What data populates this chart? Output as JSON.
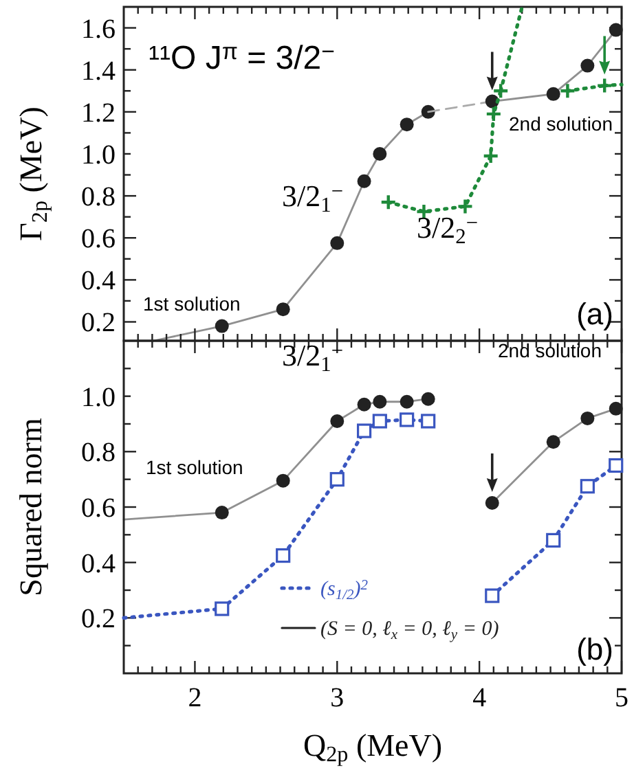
{
  "chart_data": [
    {
      "type": "line",
      "title": "¹¹O  J$^{π}$ = 3/2$^{−}$",
      "ylabel": "Γ$_{2p}$ (MeV)",
      "xlim": [
        1.5,
        5
      ],
      "ylim": [
        0.11,
        1.7
      ],
      "xticks": [
        2,
        3,
        4,
        5,
        {
          "value": 1.6,
          "label": null
        },
        {
          "value": 1.7,
          "label": null
        },
        {
          "value": 1.8,
          "label": null
        },
        {
          "value": 1.9,
          "label": null
        },
        {
          "value": 2.1,
          "label": null
        },
        {
          "value": 2.2,
          "label": null
        },
        {
          "value": 2.3,
          "label": null
        },
        {
          "value": 2.4,
          "label": null
        },
        {
          "value": 2.5,
          "label": null
        },
        {
          "value": 2.6,
          "label": null
        },
        {
          "value": 2.7,
          "label": null
        },
        {
          "value": 2.8,
          "label": null
        },
        {
          "value": 2.9,
          "label": null
        },
        {
          "value": 3.1,
          "label": null
        },
        {
          "value": 3.2,
          "label": null
        },
        {
          "value": 3.3,
          "label": null
        },
        {
          "value": 3.4,
          "label": null
        },
        {
          "value": 3.5,
          "label": null
        },
        {
          "value": 3.6,
          "label": null
        },
        {
          "value": 3.7,
          "label": null
        },
        {
          "value": 3.8,
          "label": null
        },
        {
          "value": 3.9,
          "label": null
        },
        {
          "value": 4.1,
          "label": null
        },
        {
          "value": 4.2,
          "label": null
        },
        {
          "value": 4.3,
          "label": null
        },
        {
          "value": 4.4,
          "label": null
        },
        {
          "value": 4.5,
          "label": null
        },
        {
          "value": 4.6,
          "label": null
        },
        {
          "value": 4.7,
          "label": null
        },
        {
          "value": 4.8,
          "label": null
        },
        {
          "value": 4.9,
          "label": null
        }
      ],
      "yticks": [
        0.2,
        0.4,
        0.6,
        0.8,
        {
          "value": 1,
          "label": "1.0"
        },
        1.2,
        1.4,
        1.6,
        {
          "value": 0.3,
          "label": null
        },
        {
          "value": 0.5,
          "label": null
        },
        {
          "value": 0.7,
          "label": null
        },
        {
          "value": 0.9,
          "label": null
        },
        {
          "value": 1.1,
          "label": null
        },
        {
          "value": 1.3,
          "label": null
        },
        {
          "value": 1.5,
          "label": null
        }
      ],
      "tick_labels": "y",
      "grid": false,
      "legend": false,
      "series": [
        {
          "color": "#222222",
          "line_style": "solid",
          "x": [
            1.71,
            2.19
          ],
          "values": [
            0.11,
            0.18
          ]
        },
        {
          "color": "#222222",
          "marker": "circle",
          "line_style": "solid",
          "x": [
            2.19,
            2.62,
            3.0,
            3.19,
            3.3,
            3.49,
            3.64
          ],
          "values": [
            0.18,
            0.26,
            0.575,
            0.87,
            1.0,
            1.14,
            1.2
          ]
        },
        {
          "color": "#aaaaaa",
          "line_style": "dashed",
          "x": [
            3.64,
            4.09
          ],
          "values": [
            1.2,
            1.25
          ]
        },
        {
          "color": "#222222",
          "marker": "circle",
          "line_style": "solid",
          "x": [
            4.09,
            4.52,
            4.76,
            4.96
          ],
          "values": [
            1.25,
            1.285,
            1.42,
            1.59
          ]
        },
        {
          "color": "#1e8a3a",
          "marker": "cross",
          "line_style": "dotted",
          "x": [
            3.36,
            3.61,
            3.9,
            4.08,
            4.1,
            4.15
          ],
          "values": [
            0.77,
            0.725,
            0.75,
            0.99,
            1.19,
            1.3
          ]
        },
        {
          "color": "#1e8a3a",
          "line_style": "dotted",
          "x": [
            4.15,
            4.3
          ],
          "values": [
            1.3,
            1.7
          ]
        },
        {
          "color": "#1e8a3a",
          "marker": "cross",
          "line_style": "dotted",
          "x": [
            4.62,
            4.88
          ],
          "values": [
            1.3,
            1.325
          ]
        },
        {
          "color": "#1e8a3a",
          "line_style": "dotted",
          "x": [
            4.88,
            5.0
          ],
          "values": [
            1.325,
            1.33
          ]
        }
      ],
      "annotations": [
        "3/2$_{1}$$^{−}$",
        "3/2$_{2}$$^{−}$",
        "1st solution",
        "2nd solution",
        "(a)"
      ]
    },
    {
      "type": "line",
      "xlabel": "Q$_{2p}$ (MeV)",
      "ylabel": "Squared norm",
      "xlim": [
        1.5,
        5
      ],
      "ylim": [
        0,
        1.2
      ],
      "xticks": [
        2,
        3,
        4,
        5,
        {
          "value": 1.6,
          "label": null
        },
        {
          "value": 1.7,
          "label": null
        },
        {
          "value": 1.8,
          "label": null
        },
        {
          "value": 1.9,
          "label": null
        },
        {
          "value": 2.1,
          "label": null
        },
        {
          "value": 2.2,
          "label": null
        },
        {
          "value": 2.3,
          "label": null
        },
        {
          "value": 2.4,
          "label": null
        },
        {
          "value": 2.5,
          "label": null
        },
        {
          "value": 2.6,
          "label": null
        },
        {
          "value": 2.7,
          "label": null
        },
        {
          "value": 2.8,
          "label": null
        },
        {
          "value": 2.9,
          "label": null
        },
        {
          "value": 3.1,
          "label": null
        },
        {
          "value": 3.2,
          "label": null
        },
        {
          "value": 3.3,
          "label": null
        },
        {
          "value": 3.4,
          "label": null
        },
        {
          "value": 3.5,
          "label": null
        },
        {
          "value": 3.6,
          "label": null
        },
        {
          "value": 3.7,
          "label": null
        },
        {
          "value": 3.8,
          "label": null
        },
        {
          "value": 3.9,
          "label": null
        },
        {
          "value": 4.1,
          "label": null
        },
        {
          "value": 4.2,
          "label": null
        },
        {
          "value": 4.3,
          "label": null
        },
        {
          "value": 4.4,
          "label": null
        },
        {
          "value": 4.5,
          "label": null
        },
        {
          "value": 4.6,
          "label": null
        },
        {
          "value": 4.7,
          "label": null
        },
        {
          "value": 4.8,
          "label": null
        },
        {
          "value": 4.9,
          "label": null
        }
      ],
      "yticks": [
        0.2,
        0.4,
        0.6,
        0.8,
        {
          "value": 1,
          "label": "1.0"
        },
        {
          "value": 0.1,
          "label": null
        },
        {
          "value": 0.3,
          "label": null
        },
        {
          "value": 0.5,
          "label": null
        },
        {
          "value": 0.7,
          "label": null
        },
        {
          "value": 0.9,
          "label": null
        },
        {
          "value": 1.1,
          "label": null
        }
      ],
      "grid": false,
      "legend": "bottom",
      "series": [
        {
          "color": "#3a56c0",
          "line_style": "dotted",
          "x": [
            1.5,
            2.19
          ],
          "values": [
            0.2,
            0.233
          ]
        },
        {
          "name": "(s$_{1/2}$)$^{2}$",
          "color": "#3a56c0",
          "marker": "square",
          "line_style": "dotted",
          "x": [
            2.19,
            2.62,
            3.0,
            3.19,
            3.3,
            3.49,
            3.64
          ],
          "values": [
            0.233,
            0.425,
            0.7,
            0.875,
            0.91,
            0.915,
            0.91
          ]
        },
        {
          "color": "#3a56c0",
          "marker": "square",
          "line_style": "dotted",
          "x": [
            4.09,
            4.52,
            4.76,
            4.96
          ],
          "values": [
            0.28,
            0.48,
            0.675,
            0.75
          ]
        },
        {
          "color": "#222222",
          "line_style": "solid",
          "x": [
            1.5,
            2.19
          ],
          "values": [
            0.555,
            0.58
          ]
        },
        {
          "name": "(S = 0, ℓ$_{x}$ = 0, ℓ$_{y}$ = 0)",
          "color": "#222222",
          "marker": "circle",
          "line_style": "solid",
          "x": [
            2.19,
            2.62,
            3.0,
            3.19,
            3.3,
            3.49,
            3.64
          ],
          "values": [
            0.58,
            0.695,
            0.91,
            0.97,
            0.98,
            0.98,
            0.99
          ]
        },
        {
          "color": "#222222",
          "marker": "circle",
          "line_style": "solid",
          "x": [
            4.09,
            4.52,
            4.76,
            4.96
          ],
          "values": [
            0.615,
            0.835,
            0.92,
            0.955
          ]
        }
      ],
      "annotations": [
        "3/2$_{1}$$^{−}$",
        "1st solution",
        "2nd solution",
        "(b)"
      ]
    }
  ]
}
